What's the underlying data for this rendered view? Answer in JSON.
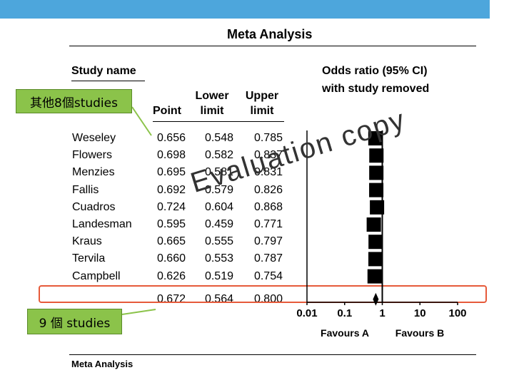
{
  "header": {
    "title": "Meta Analysis"
  },
  "columns": {
    "study_name": "Study name",
    "point": "Point",
    "lower_1": "Lower",
    "lower_2": "limit",
    "upper_1": "Upper",
    "upper_2": "limit",
    "plot_1": "Odds ratio (95% CI)",
    "plot_2": "with study removed"
  },
  "callouts": {
    "top": "其他8個studies",
    "bottom": "9 個 studies"
  },
  "watermark": "Evaluation copy",
  "footer": "Meta Analysis",
  "chart_data": {
    "type": "table",
    "title": "Meta Analysis",
    "x_axis": {
      "scale": "log",
      "ticks": [
        "0.01",
        "0.1",
        "1",
        "10",
        "100"
      ],
      "tick_values": [
        0.01,
        0.1,
        1,
        10,
        100
      ],
      "left_label": "Favours A",
      "right_label": "Favours B"
    },
    "rows": [
      {
        "study": "Weseley",
        "point": "0.656",
        "lower": "0.548",
        "upper": "0.785"
      },
      {
        "study": "Flowers",
        "point": "0.698",
        "lower": "0.582",
        "upper": "0.837"
      },
      {
        "study": "Menzies",
        "point": "0.695",
        "lower": "0.581",
        "upper": "0.831"
      },
      {
        "study": "Fallis",
        "point": "0.692",
        "lower": "0.579",
        "upper": "0.826"
      },
      {
        "study": "Cuadros",
        "point": "0.724",
        "lower": "0.604",
        "upper": "0.868"
      },
      {
        "study": "Landesman",
        "point": "0.595",
        "lower": "0.459",
        "upper": "0.771"
      },
      {
        "study": "Kraus",
        "point": "0.665",
        "lower": "0.555",
        "upper": "0.797"
      },
      {
        "study": "Tervila",
        "point": "0.660",
        "lower": "0.553",
        "upper": "0.787"
      },
      {
        "study": "Campbell",
        "point": "0.626",
        "lower": "0.519",
        "upper": "0.754"
      }
    ],
    "summary": {
      "point": "0.672",
      "lower": "0.564",
      "upper": "0.800"
    }
  }
}
